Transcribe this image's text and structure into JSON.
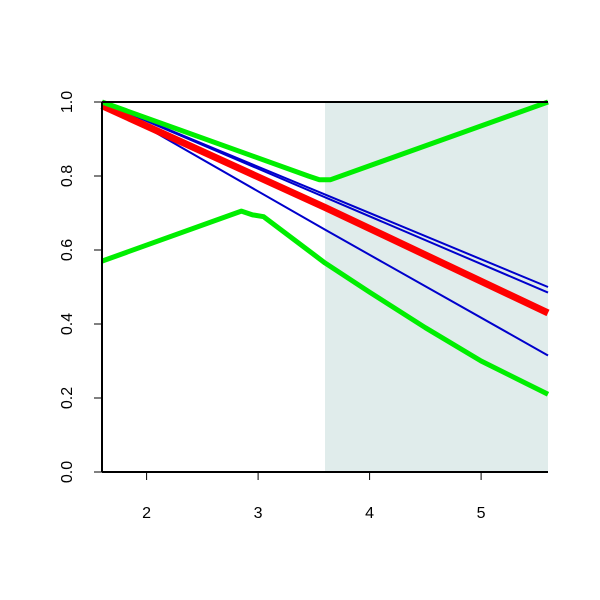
{
  "chart_data": {
    "type": "line",
    "xlim": [
      1.6,
      5.6
    ],
    "ylim": [
      0,
      1
    ],
    "xticks": [
      2,
      3,
      4,
      5
    ],
    "yticks": [
      {
        "value": 0,
        "label": "0.0"
      },
      {
        "value": 0.2,
        "label": "0.2"
      },
      {
        "value": 0.4,
        "label": "0.4"
      },
      {
        "value": 0.6,
        "label": "0.6"
      },
      {
        "value": 0.8,
        "label": "0.8"
      },
      {
        "value": 1,
        "label": "1.0"
      }
    ],
    "shaded_region": {
      "x": [
        3.6,
        5.6
      ],
      "color": "#e0eceb"
    },
    "series": [
      {
        "color": "#0000cc",
        "width": 2,
        "x": [
          1.6,
          5.6
        ],
        "values": [
          1.0,
          0.5
        ]
      },
      {
        "color": "#0000cc",
        "width": 2,
        "x": [
          1.6,
          5.6
        ],
        "values": [
          1.0,
          0.485
        ]
      },
      {
        "color": "#0000cc",
        "width": 2,
        "x": [
          1.6,
          3.6,
          5.6
        ],
        "values": [
          1.0,
          0.655,
          0.315
        ]
      },
      {
        "color": "#ff0000",
        "width": 7,
        "x": [
          1.6,
          3.6,
          5.6
        ],
        "values": [
          0.99,
          0.715,
          0.43
        ]
      },
      {
        "color": "#00ee00",
        "width": 5,
        "x": [
          1.6,
          3.45,
          3.55,
          3.65,
          5.6
        ],
        "values": [
          1.0,
          0.8,
          0.79,
          0.79,
          1.0
        ]
      },
      {
        "color": "#00ee00",
        "width": 5,
        "x": [
          1.6,
          2.85,
          2.95,
          3.05,
          3.6,
          4.0,
          4.5,
          5.0,
          5.6
        ],
        "values": [
          0.57,
          0.705,
          0.695,
          0.69,
          0.565,
          0.486,
          0.39,
          0.3,
          0.21
        ]
      }
    ]
  }
}
